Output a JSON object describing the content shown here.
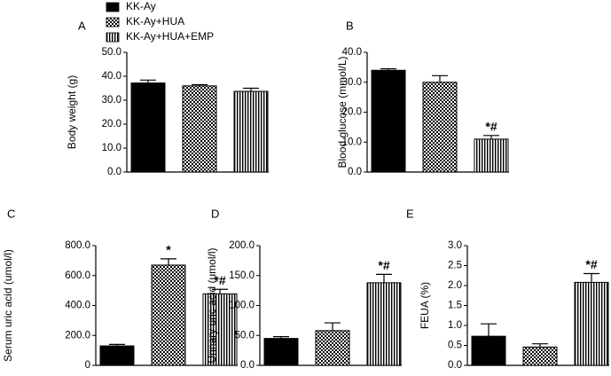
{
  "legend": [
    {
      "name": "KK-Ay",
      "pattern": "solid"
    },
    {
      "name": "KK-Ay+HUA",
      "pattern": "checker"
    },
    {
      "name": "KK-Ay+HUA+EMP",
      "pattern": "vstripe"
    }
  ],
  "chart_data": [
    {
      "type": "bar",
      "panel_label": "A",
      "ylabel": "Body weight (g)",
      "values": [
        37.2,
        36.0,
        33.7
      ],
      "errors": [
        1.2,
        0.5,
        1.3
      ],
      "annotations": [
        null,
        null,
        null
      ],
      "ylim": [
        0,
        50
      ],
      "yticks": [
        {
          "value": 0,
          "label": "0.0"
        },
        {
          "value": 10,
          "label": "10.0"
        },
        {
          "value": 20,
          "label": "20.0"
        },
        {
          "value": 30,
          "label": "30.0"
        },
        {
          "value": 40,
          "label": "40.0"
        },
        {
          "value": 50,
          "label": "50.0"
        }
      ]
    },
    {
      "type": "bar",
      "panel_label": "B",
      "ylabel": "Blood glucose (mmol/L)",
      "values": [
        34.0,
        30.0,
        11.0
      ],
      "errors": [
        0.5,
        2.2,
        1.2
      ],
      "annotations": [
        null,
        null,
        "*#"
      ],
      "ylim": [
        0,
        40
      ],
      "yticks": [
        {
          "value": 0,
          "label": "0.0"
        },
        {
          "value": 10,
          "label": "10.0"
        },
        {
          "value": 20,
          "label": "20.0"
        },
        {
          "value": 30,
          "label": "30.0"
        },
        {
          "value": 40,
          "label": "40.0"
        }
      ]
    },
    {
      "type": "bar",
      "panel_label": "C",
      "ylabel": "Serum uric acid (umol/l)",
      "values": [
        130,
        670,
        478
      ],
      "errors": [
        10,
        42,
        30
      ],
      "annotations": [
        null,
        "*",
        "*#"
      ],
      "ylim": [
        0,
        800
      ],
      "yticks": [
        0,
        {
          "value": 200,
          "label": "200.0"
        },
        {
          "value": 400,
          "label": "400.0"
        },
        {
          "value": 600,
          "label": "600.0"
        },
        {
          "value": 800,
          "label": "800.0"
        }
      ]
    },
    {
      "type": "bar",
      "panel_label": "D",
      "ylabel": "Urinary uric acid (umol/l)",
      "values": [
        45,
        58,
        138
      ],
      "errors": [
        3,
        13,
        14
      ],
      "annotations": [
        null,
        null,
        "*#"
      ],
      "ylim": [
        0,
        200
      ],
      "yticks": [
        {
          "value": 0,
          "label": "0.0"
        },
        {
          "value": 50,
          "label": "50.0"
        },
        {
          "value": 100,
          "label": "100.0"
        },
        {
          "value": 150,
          "label": "150.0"
        },
        {
          "value": 200,
          "label": "200.0"
        }
      ]
    },
    {
      "type": "bar",
      "panel_label": "E",
      "ylabel": "FEUA (%)",
      "values": [
        0.73,
        0.46,
        2.08
      ],
      "errors": [
        0.31,
        0.08,
        0.22
      ],
      "annotations": [
        null,
        null,
        "*#"
      ],
      "ylim": [
        0,
        3.0
      ],
      "yticks": [
        {
          "value": 0,
          "label": "0.0"
        },
        {
          "value": 0.5,
          "label": "0.5"
        },
        {
          "value": 1.0,
          "label": "1.0"
        },
        {
          "value": 1.5,
          "label": "1.5"
        },
        {
          "value": 2.0,
          "label": "2.0"
        },
        {
          "value": 2.5,
          "label": "2.5"
        },
        {
          "value": 3.0,
          "label": "3.0"
        }
      ]
    }
  ]
}
